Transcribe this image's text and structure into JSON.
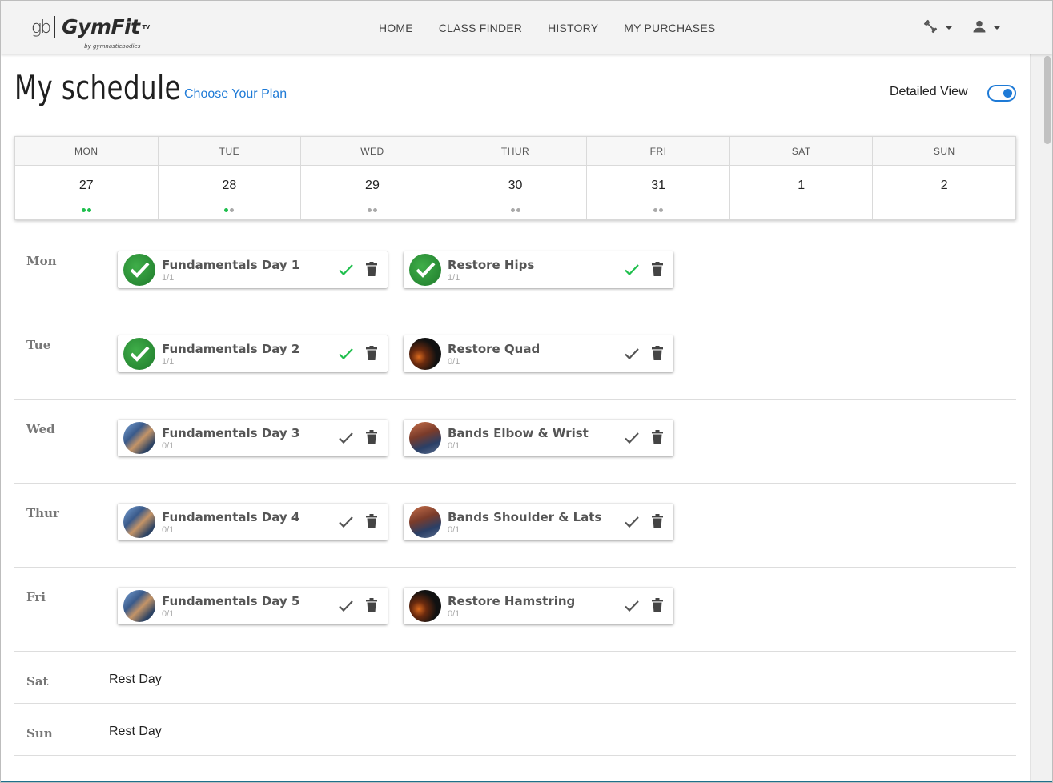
{
  "header": {
    "logo_gb": "gb",
    "logo_text": "GymFit",
    "logo_tm": "TV",
    "logo_sub": "by gymnasticbodies",
    "nav": [
      "HOME",
      "CLASS FINDER",
      "HISTORY",
      "MY PURCHASES"
    ],
    "icons": [
      "dumbbell-icon",
      "user-icon"
    ]
  },
  "page": {
    "title": "My schedule",
    "plan_link": "Choose Your Plan",
    "detailed_view_label": "Detailed View",
    "detailed_view_on": true
  },
  "week": {
    "days": [
      {
        "name": "MON",
        "date": "27",
        "dots": [
          "done",
          "done"
        ]
      },
      {
        "name": "TUE",
        "date": "28",
        "dots": [
          "done",
          "todo"
        ]
      },
      {
        "name": "WED",
        "date": "29",
        "dots": [
          "todo",
          "todo"
        ]
      },
      {
        "name": "THUR",
        "date": "30",
        "dots": [
          "todo",
          "todo"
        ]
      },
      {
        "name": "FRI",
        "date": "31",
        "dots": [
          "todo",
          "todo"
        ]
      },
      {
        "name": "SAT",
        "date": "1",
        "dots": []
      },
      {
        "name": "SUN",
        "date": "2",
        "dots": []
      }
    ]
  },
  "schedule": {
    "rows": [
      {
        "day": "Mon",
        "classes": [
          {
            "title": "Fundamentals Day 1",
            "count": "1/1",
            "completed": true,
            "thumb": "green-check"
          },
          {
            "title": "Restore Hips",
            "count": "1/1",
            "completed": true,
            "thumb": "green-check"
          }
        ]
      },
      {
        "day": "Tue",
        "classes": [
          {
            "title": "Fundamentals Day 2",
            "count": "1/1",
            "completed": true,
            "thumb": "green-check"
          },
          {
            "title": "Restore Quad",
            "count": "0/1",
            "completed": false,
            "thumb": "dark-restore"
          }
        ]
      },
      {
        "day": "Wed",
        "classes": [
          {
            "title": "Fundamentals Day 3",
            "count": "0/1",
            "completed": false,
            "thumb": "athlete-photo"
          },
          {
            "title": "Bands Elbow & Wrist",
            "count": "0/1",
            "completed": false,
            "thumb": "bands-photo"
          }
        ]
      },
      {
        "day": "Thur",
        "classes": [
          {
            "title": "Fundamentals Day 4",
            "count": "0/1",
            "completed": false,
            "thumb": "athlete-photo"
          },
          {
            "title": "Bands Shoulder & Lats",
            "count": "0/1",
            "completed": false,
            "thumb": "bands-photo"
          }
        ]
      },
      {
        "day": "Fri",
        "classes": [
          {
            "title": "Fundamentals Day 5",
            "count": "0/1",
            "completed": false,
            "thumb": "athlete-photo"
          },
          {
            "title": "Restore Hamstring",
            "count": "0/1",
            "completed": false,
            "thumb": "dark-restore"
          }
        ]
      }
    ],
    "rest_rows": [
      {
        "day": "Sat",
        "text": "Rest Day"
      },
      {
        "day": "Sun",
        "text": "Rest Day"
      }
    ]
  },
  "colors": {
    "accent": "#1e7ad6",
    "complete_green": "#1fbf4d",
    "pending_gray": "#a9a9a9",
    "bottom_strip": "#1f6f8b"
  }
}
